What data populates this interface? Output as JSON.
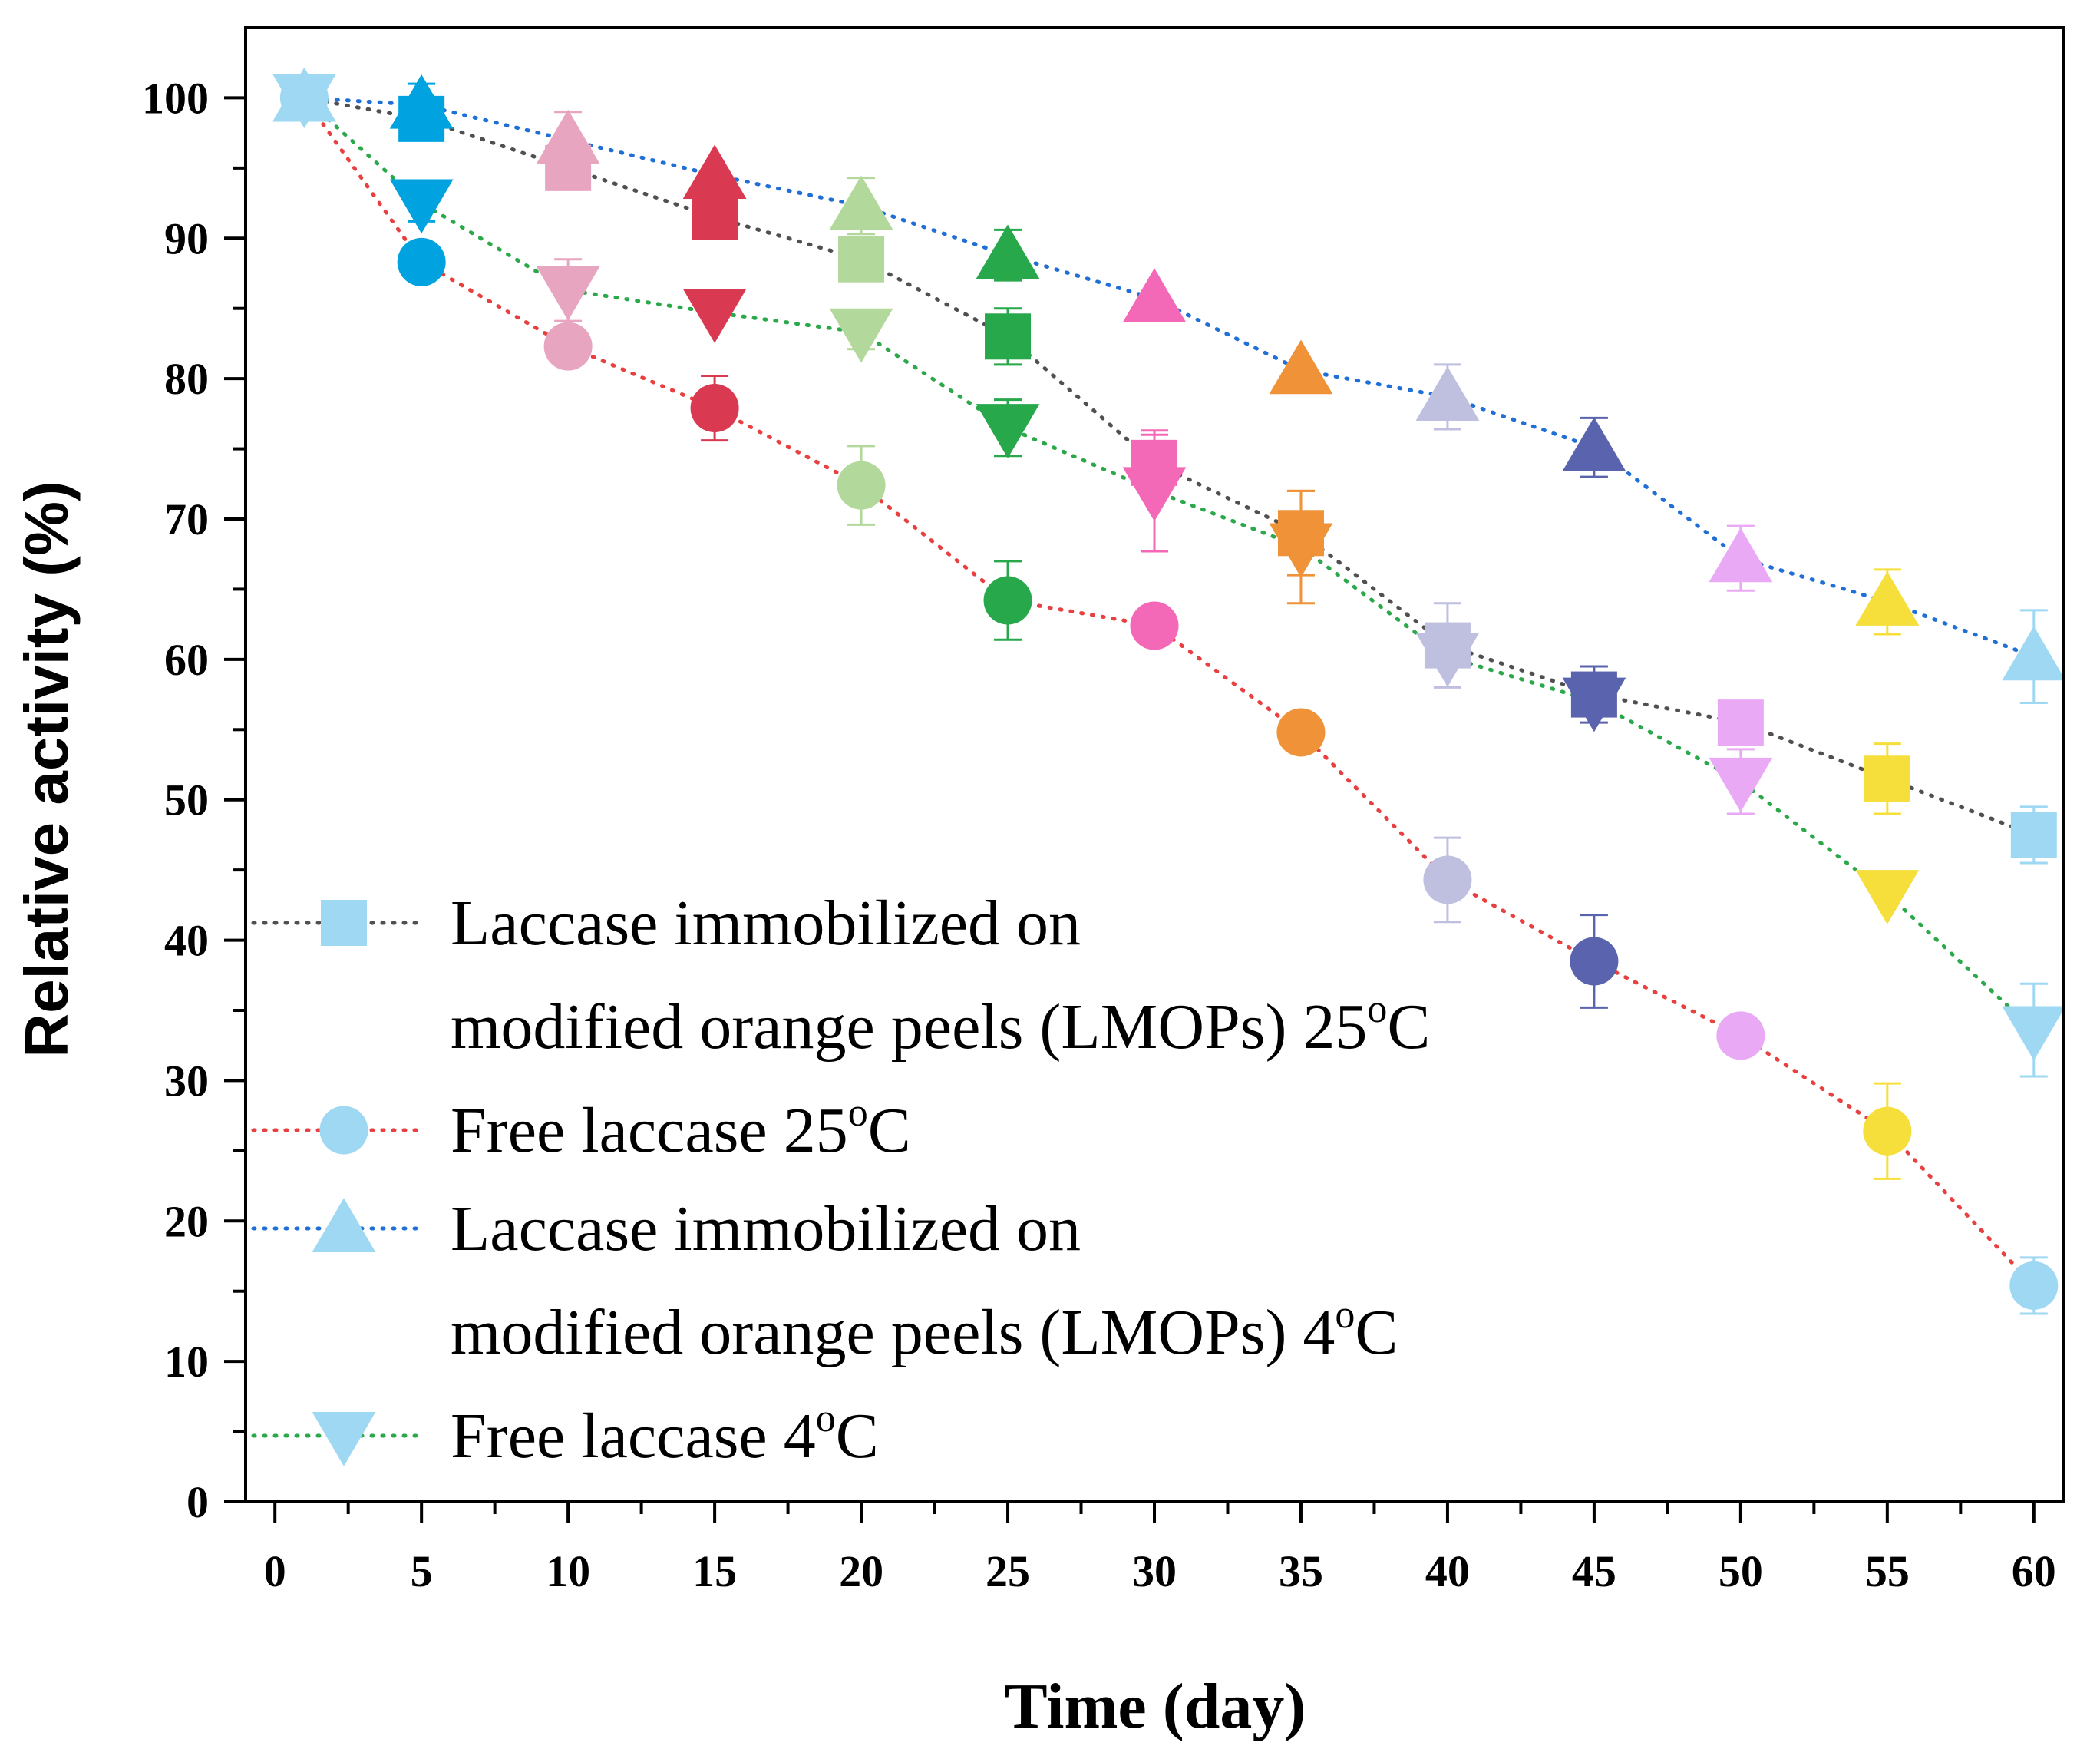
{
  "chart_data": {
    "type": "scatter",
    "xlabel": "Time (day)",
    "ylabel": "Relative activity (%)",
    "xlim": [
      -1,
      61
    ],
    "ylim": [
      0,
      105
    ],
    "xticks": [
      0,
      5,
      10,
      15,
      20,
      25,
      30,
      35,
      40,
      45,
      50,
      55,
      60
    ],
    "yticks": [
      0,
      10,
      20,
      30,
      40,
      50,
      60,
      70,
      80,
      90,
      100
    ],
    "x": [
      1,
      5,
      10,
      15,
      20,
      25,
      30,
      35,
      40,
      45,
      50,
      55,
      60
    ],
    "point_colors": [
      "#9ed8f2",
      "#00a3e0",
      "#e8a5c0",
      "#d93a52",
      "#b3d89c",
      "#27a84b",
      "#f468b8",
      "#f09238",
      "#bfbfdf",
      "#5a63ad",
      "#e9a9f5",
      "#f6df3a",
      "#9ed8f2"
    ],
    "series": [
      {
        "name": "Laccase immobilized on modified orange peels (LMOPs) 25°C",
        "legend_lines": [
          "Laccase immobilized on",
          "modified orange peels (LMOPs) 25",
          "o",
          "C"
        ],
        "marker": "square",
        "line_color": "#505050",
        "values": [
          100,
          98.5,
          95,
          91.5,
          88.5,
          83,
          74,
          69,
          61,
          57.5,
          55.5,
          51.5,
          47.5
        ],
        "errors": [
          0,
          0,
          0,
          0,
          0,
          2,
          2,
          3,
          3,
          2,
          0,
          2.5,
          2
        ]
      },
      {
        "name": "Free laccase 25°C",
        "legend_lines": [
          "Free laccase 25",
          "o",
          "C"
        ],
        "marker": "circle",
        "line_color": "#e84040",
        "values": [
          100,
          88.3,
          82.3,
          77.9,
          72.4,
          64.2,
          62.4,
          54.8,
          44.3,
          38.5,
          33.2,
          26.4,
          15.4
        ],
        "errors": [
          0,
          0,
          0,
          2.3,
          2.8,
          2.8,
          0,
          0,
          3,
          3.3,
          0,
          3.4,
          2
        ]
      },
      {
        "name": "Laccase immobilized on modified orange peels (LMOPs) 4°C",
        "legend_lines": [
          "Laccase immobilized on",
          "modified orange peels (LMOPs) 4",
          "o",
          "C"
        ],
        "marker": "triangle-up",
        "line_color": "#1f6fd6",
        "values": [
          100,
          99.5,
          97,
          94.5,
          92.3,
          88.8,
          85.7,
          80.6,
          78.7,
          75.1,
          67.2,
          64.1,
          60.2
        ],
        "errors": [
          0,
          1.5,
          2,
          0,
          2,
          1.8,
          0,
          0,
          2.3,
          2.1,
          2.3,
          2.3,
          3.3
        ]
      },
      {
        "name": "Free laccase 4°C",
        "legend_lines": [
          "Free laccase 4",
          "o",
          "C"
        ],
        "marker": "triangle-down",
        "line_color": "#2aa84a",
        "values": [
          100,
          92.5,
          86.3,
          84.7,
          83.3,
          76.5,
          72,
          68,
          60.2,
          57,
          51.3,
          43.3,
          33.6
        ],
        "errors": [
          0,
          1.3,
          2.2,
          0,
          1.2,
          2,
          4.3,
          4,
          0,
          0,
          2.3,
          0,
          3.3
        ]
      }
    ]
  }
}
